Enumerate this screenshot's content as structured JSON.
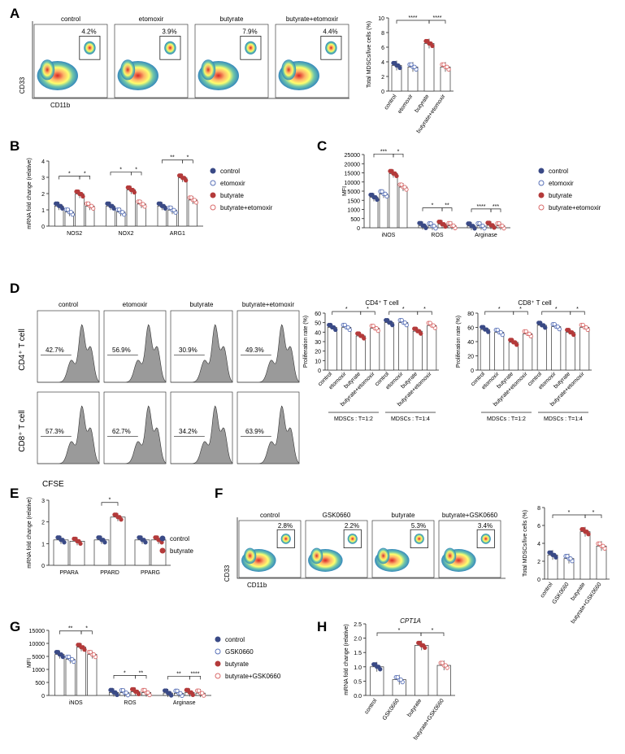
{
  "colors": {
    "control": "#3a4a86",
    "etomoxir": "#5a72b8",
    "butyrate": "#b43a3a",
    "butyrate_etomoxir": "#d96a6a",
    "flow_hi": "#d7191c",
    "flow_lo": "#2b83ba",
    "histogram": "#9a9a9a"
  },
  "panels": {
    "A": {
      "label": "A",
      "conditions": [
        "control",
        "etomoxir",
        "butyrate",
        "butyrate+etomoxir"
      ],
      "gates": [
        "4.2%",
        "3.9%",
        "7.9%",
        "4.4%"
      ],
      "y_axis": "CD33",
      "x_axis": "CD11b",
      "chart_data": {
        "type": "bar",
        "categories": [
          "control",
          "etomoxir",
          "butyrate",
          "butyrate+etomoxir"
        ],
        "values": [
          3.5,
          3.3,
          6.5,
          3.3
        ],
        "ylabel": "Total MDSCs/live cells (%)",
        "ylim": [
          0,
          10
        ],
        "yticks": [
          "0",
          "2",
          "4",
          "6",
          "8",
          "10"
        ],
        "sig": [
          "****",
          "****"
        ]
      }
    },
    "B": {
      "label": "B",
      "chart_data": {
        "type": "bar",
        "categories": [
          "NOS2",
          "NOX2",
          "ARG1"
        ],
        "series": [
          {
            "name": "control",
            "values": [
              1.0,
              1.0,
              1.0
            ]
          },
          {
            "name": "etomoxir",
            "values": [
              0.7,
              0.7,
              0.8
            ]
          },
          {
            "name": "butyrate",
            "values": [
              1.6,
              1.8,
              2.4
            ]
          },
          {
            "name": "butyrate+etomoxir",
            "values": [
              1.0,
              1.1,
              1.3
            ]
          }
        ],
        "ylabel": "mRNA fold change (relative)",
        "ylim": [
          0,
          4
        ],
        "yticks": [
          "0",
          "1",
          "2",
          "3",
          "4"
        ],
        "sig": [
          "*",
          "*",
          "*",
          "*",
          "**",
          "*"
        ]
      }
    },
    "C": {
      "label": "C",
      "chart_data": {
        "type": "bar",
        "categories": [
          "iNOS",
          "ROS",
          "Arginase"
        ],
        "series": [
          {
            "name": "control",
            "values": [
              9000,
              650,
              520
            ]
          },
          {
            "name": "etomoxir",
            "values": [
              10000,
              550,
              560
            ]
          },
          {
            "name": "butyrate",
            "values": [
              16000,
              1050,
              750
            ]
          },
          {
            "name": "butyrate+etomoxir",
            "values": [
              12000,
              620,
              560
            ]
          }
        ],
        "ylabel": "MFI",
        "yticks": [
          "0",
          "500",
          "1000",
          "1500",
          "5000",
          "10000",
          "15000",
          "20000",
          "25000"
        ],
        "sig": [
          "***",
          "*",
          "*",
          "**",
          "****",
          "***"
        ]
      }
    },
    "D": {
      "label": "D",
      "conditions": [
        "control",
        "etomoxir",
        "butyrate",
        "butyrate+etomoxir"
      ],
      "rows": [
        "CD4⁺ T cell",
        "CD8⁺ T cell"
      ],
      "x_axis": "CFSE",
      "gates_cd4": [
        "42.7%",
        "56.9%",
        "30.9%",
        "49.3%"
      ],
      "gates_cd8": [
        "57.3%",
        "62.7%",
        "34.2%",
        "63.9%"
      ],
      "chart_data": [
        {
          "type": "bar",
          "title": "CD4⁺ T cell",
          "ylabel": "Proliferation rate (%)",
          "ylim": [
            0,
            60
          ],
          "yticks": [
            "0",
            "10",
            "20",
            "30",
            "40",
            "50",
            "60"
          ],
          "categories": [
            "control",
            "etomoxir",
            "butyrate",
            "butyrate+etomoxir",
            "control",
            "etomoxir",
            "butyrate",
            "butyrate+etomoxir"
          ],
          "values": [
            45,
            45,
            36,
            44,
            50,
            50,
            41,
            47
          ],
          "groups": [
            "MDSCs : T=1:2",
            "MDSCs : T=1:4"
          ],
          "sig": [
            "*",
            "*",
            "*",
            "*"
          ]
        },
        {
          "type": "bar",
          "title": "CD8⁺ T cell",
          "ylabel": "Proliferation rate (%)",
          "ylim": [
            0,
            80
          ],
          "yticks": [
            "0",
            "20",
            "40",
            "60",
            "80"
          ],
          "categories": [
            "control",
            "etomoxir",
            "butyrate",
            "butyrate+etomoxir",
            "control",
            "etomoxir",
            "butyrate",
            "butyrate+etomoxir"
          ],
          "values": [
            57,
            53,
            39,
            51,
            63,
            61,
            53,
            60
          ],
          "groups": [
            "MDSCs : T=1:2",
            "MDSCs : T=1:4"
          ],
          "sig": [
            "*",
            "*",
            "*",
            "*"
          ]
        }
      ]
    },
    "E": {
      "label": "E",
      "chart_data": {
        "type": "bar",
        "categories": [
          "PPARA",
          "PPARD",
          "PPARG"
        ],
        "series": [
          {
            "name": "control",
            "values": [
              1.0,
              1.0,
              1.0
            ]
          },
          {
            "name": "butyrate",
            "values": [
              0.95,
              1.9,
              1.0
            ]
          }
        ],
        "ylabel": "mRNA fold change (relative)",
        "ylim": [
          0,
          3
        ],
        "yticks": [
          "0",
          "1",
          "2",
          "3"
        ],
        "sig": [
          "*"
        ]
      }
    },
    "F": {
      "label": "F",
      "conditions": [
        "control",
        "GSK0660",
        "butyrate",
        "butyrate+GSK0660"
      ],
      "gates": [
        "2.8%",
        "2.2%",
        "5.3%",
        "3.4%"
      ],
      "y_axis": "CD33",
      "x_axis": "CD11b",
      "chart_data": {
        "type": "bar",
        "categories": [
          "control",
          "GSK0660",
          "butyrate",
          "butyrate+GSK0660"
        ],
        "values": [
          2.7,
          2.3,
          5.3,
          3.7
        ],
        "ylabel": "Total MDSCs/live cells (%)",
        "ylim": [
          0,
          8
        ],
        "yticks": [
          "0",
          "2",
          "4",
          "6",
          "8"
        ],
        "sig": [
          "*",
          "*"
        ]
      }
    },
    "G": {
      "label": "G",
      "chart_data": {
        "type": "bar",
        "categories": [
          "iNOS",
          "ROS",
          "Arginase"
        ],
        "series": [
          {
            "name": "control",
            "values": [
              8500,
              620,
              500
            ]
          },
          {
            "name": "GSK0660",
            "values": [
              7500,
              560,
              450
            ]
          },
          {
            "name": "butyrate",
            "values": [
              10000,
              780,
              620
            ]
          },
          {
            "name": "butyrate+GSK0660",
            "values": [
              8500,
              600,
              480
            ]
          }
        ],
        "ylabel": "MFI",
        "yticks": [
          "0",
          "500",
          "1000",
          "5000",
          "10000",
          "15000"
        ],
        "sig": [
          "**",
          "*",
          "*",
          "**",
          "**",
          "****"
        ]
      }
    },
    "H": {
      "label": "H",
      "chart_data": {
        "type": "bar",
        "title": "CPT1A",
        "categories": [
          "control",
          "GSK0660",
          "butyrate",
          "butyrate+GSK0660"
        ],
        "values": [
          1.0,
          0.55,
          1.75,
          1.05
        ],
        "ylabel": "mRNA fold change (relative)",
        "ylim": [
          0,
          2.5
        ],
        "yticks": [
          "0.0",
          "0.5",
          "1.0",
          "1.5",
          "2.0",
          "2.5"
        ],
        "sig": [
          "*",
          "*"
        ]
      }
    }
  },
  "legends": {
    "B": [
      "control",
      "etomoxir",
      "butyrate",
      "butyrate+etomoxir"
    ],
    "C": [
      "control",
      "etomoxir",
      "butyrate",
      "butyrate+etomoxir"
    ],
    "E": [
      "control",
      "butyrate"
    ],
    "G": [
      "control",
      "GSK0660",
      "butyrate",
      "butyrate+GSK0660"
    ]
  }
}
